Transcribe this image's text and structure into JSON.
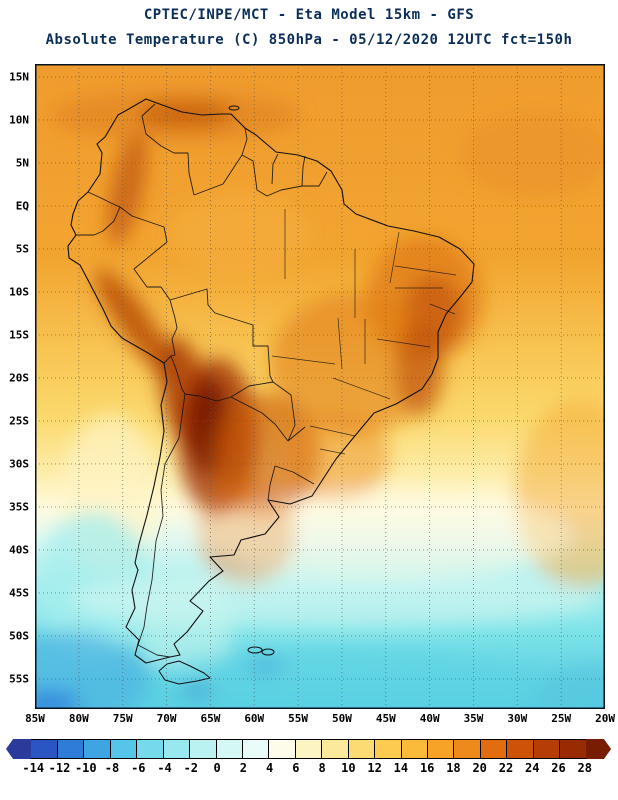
{
  "header": {
    "title_line1": "CPTEC/INPE/MCT -  Eta Model 15km - GFS",
    "title_line2": "Absolute Temperature (C) 850hPa - 05/12/2020 12UTC fct=150h"
  },
  "map": {
    "lat_labels": [
      "15N",
      "10N",
      "5N",
      "EQ",
      "5S",
      "10S",
      "15S",
      "20S",
      "25S",
      "30S",
      "35S",
      "40S",
      "45S",
      "50S",
      "55S"
    ],
    "lon_labels": [
      "85W",
      "80W",
      "75W",
      "70W",
      "65W",
      "60W",
      "55W",
      "50W",
      "45W",
      "40W",
      "35W",
      "30W",
      "25W",
      "20W"
    ]
  },
  "colorbar": {
    "tick_labels": [
      "-14",
      "-12",
      "-10",
      "-8",
      "-6",
      "-4",
      "-2",
      "0",
      "2",
      "4",
      "6",
      "8",
      "10",
      "12",
      "14",
      "16",
      "18",
      "20",
      "22",
      "24",
      "26",
      "28"
    ],
    "colors": [
      "#2b3a9b",
      "#2c55c4",
      "#2f7cd6",
      "#3ea5e2",
      "#55c5ea",
      "#76d9ec",
      "#99e8ef",
      "#baf2f2",
      "#d3f8f5",
      "#e9fcf8",
      "#fdfceb",
      "#fdf4c3",
      "#fde99c",
      "#fcdb75",
      "#fccb50",
      "#fbba39",
      "#f6a328",
      "#ee891b",
      "#e26d10",
      "#cf5209",
      "#b63d05",
      "#992b03",
      "#781d02"
    ]
  },
  "chart_data": {
    "type": "heatmap",
    "title": "CPTEC/INPE/MCT -  Eta Model 15km - GFS",
    "subtitle": "Absolute Temperature (C) 850hPa - 05/12/2020 12UTC fct=150h",
    "variable": "Absolute Temperature",
    "units": "C",
    "level": "850hPa",
    "valid_time": "05/12/2020 12UTC fct=150h",
    "x_tick_labels": [
      "85W",
      "80W",
      "75W",
      "70W",
      "65W",
      "60W",
      "55W",
      "50W",
      "45W",
      "40W",
      "35W",
      "30W",
      "25W",
      "20W"
    ],
    "y_tick_labels": [
      "15N",
      "10N",
      "5N",
      "EQ",
      "5S",
      "10S",
      "15S",
      "20S",
      "25S",
      "30S",
      "35S",
      "40S",
      "45S",
      "50S",
      "55S"
    ],
    "colorbar_min": -14,
    "colorbar_max": 28,
    "colorbar_step": 2,
    "grid": "dotted 5-degree graticule",
    "legend_position": "bottom"
  }
}
